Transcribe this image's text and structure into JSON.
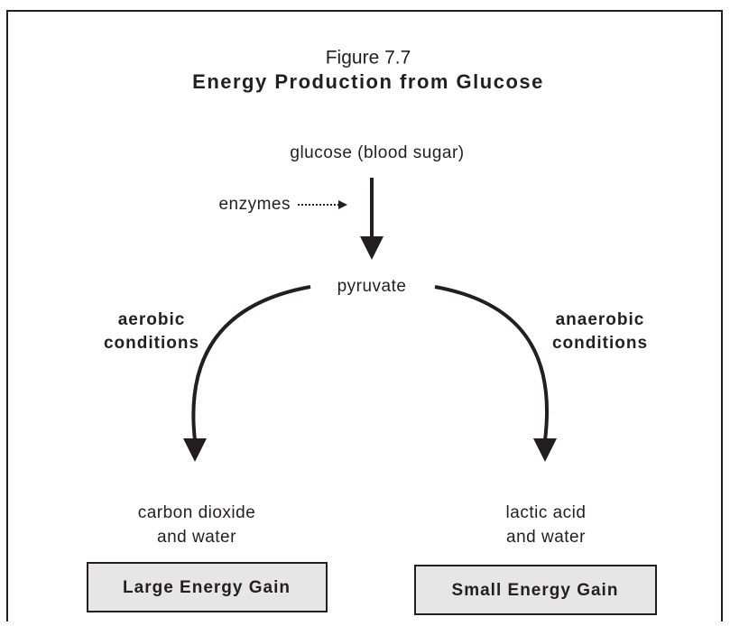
{
  "figure": {
    "label": "Figure 7.7",
    "title": "Energy Production from Glucose"
  },
  "nodes": {
    "glucose": "glucose (blood sugar)",
    "enzymes": "enzymes",
    "pyruvate": "pyruvate",
    "aerobic": [
      "aerobic",
      "conditions"
    ],
    "anaerobic": [
      "anaerobic",
      "conditions"
    ],
    "aerobic_product": [
      "carbon dioxide",
      "and water"
    ],
    "anaerobic_product": [
      "lactic acid",
      "and water"
    ],
    "aerobic_gain": "Large Energy Gain",
    "anaerobic_gain": "Small Energy Gain"
  }
}
